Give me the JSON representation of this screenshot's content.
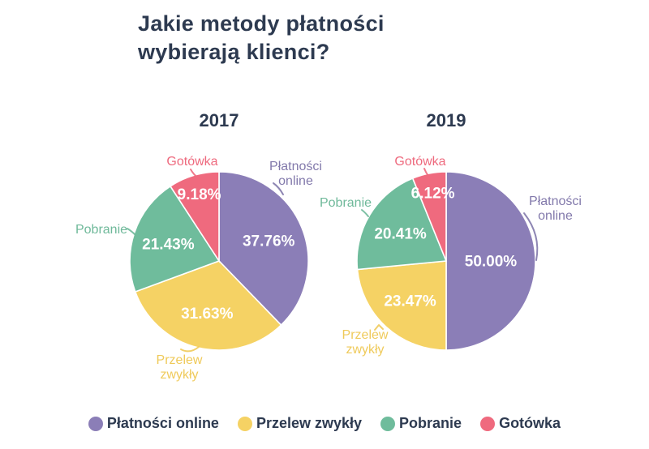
{
  "header": {
    "title": "Jakie metody płatności wybierają klienci?"
  },
  "palette": [
    "#8b7eb7",
    "#f5d264",
    "#6fbc9c",
    "#ef6a7e"
  ],
  "label_colors": [
    "#8279ab",
    "#efca5a",
    "#6fb99a",
    "#ee6a7e"
  ],
  "text_color": "#2d3a50",
  "chart_data": [
    {
      "type": "pie",
      "title": "2017",
      "categories": [
        "Płatności online",
        "Przelew zwykły",
        "Pobranie",
        "Gotówka"
      ],
      "keys": [
        "platnosci-online",
        "przelew-zwykly",
        "pobranie",
        "gotowka"
      ],
      "values": [
        37.76,
        31.63,
        21.43,
        9.18
      ],
      "value_labels": [
        "37.76%",
        "31.63%",
        "21.43%",
        "9.18%"
      ],
      "colors": [
        "#8b7eb7",
        "#f5d264",
        "#6fbc9c",
        "#ef6a7e"
      ],
      "start_angle_deg": 0,
      "direction": "clockwise",
      "legend_position": "bottom"
    },
    {
      "type": "pie",
      "title": "2019",
      "categories": [
        "Płatności online",
        "Przelew zwykły",
        "Pobranie",
        "Gotówka"
      ],
      "keys": [
        "platnosci-online",
        "przelew-zwykly",
        "pobranie",
        "gotowka"
      ],
      "values": [
        50.0,
        23.47,
        20.41,
        6.12
      ],
      "value_labels": [
        "50.00%",
        "23.47%",
        "20.41%",
        "6.12%"
      ],
      "colors": [
        "#8b7eb7",
        "#f5d264",
        "#6fbc9c",
        "#ef6a7e"
      ],
      "start_angle_deg": 0,
      "direction": "clockwise",
      "legend_position": "bottom"
    }
  ],
  "legend": {
    "items": [
      {
        "label": "Płatności online",
        "color": "#8b7eb7"
      },
      {
        "label": "Przelew zwykły",
        "color": "#f5d264"
      },
      {
        "label": "Pobranie",
        "color": "#6fbc9c"
      },
      {
        "label": "Gotówka",
        "color": "#ef6a7e"
      }
    ]
  }
}
